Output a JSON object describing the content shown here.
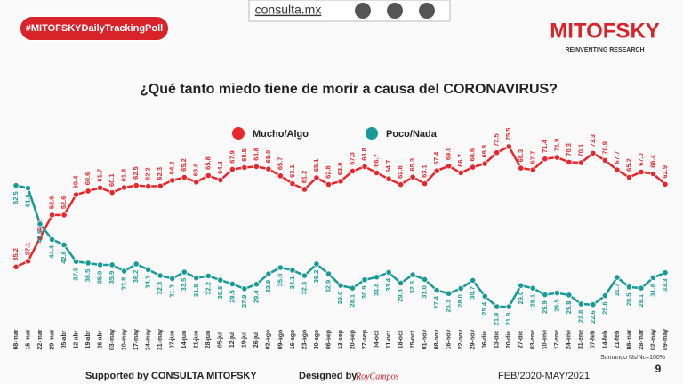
{
  "header": {
    "hashtag": "#MITOFSKYDailyTrackingPoll",
    "site": "consulta.mx",
    "brand": "MITOFSKY",
    "tagline": "REINVENTING RESEARCH"
  },
  "chart_data": {
    "type": "line",
    "title": "¿Qué tanto miedo tiene de morir a causa del CORONAVIRUS?",
    "categories": [
      "08-mar",
      "15-mar",
      "22-mar",
      "29-mar",
      "05-abr",
      "12-abr",
      "19-abr",
      "26-abr",
      "03-may",
      "10-may",
      "17-may",
      "24-may",
      "31-may",
      "07-jun",
      "14-jun",
      "21-jun",
      "28-jun",
      "05-jul",
      "12-jul",
      "19-jul",
      "26-jul",
      "02-ago",
      "09-ago",
      "16-ago",
      "23-ago",
      "30-ago",
      "06-sep",
      "13-sep",
      "20-sep",
      "27-sep",
      "04-oct",
      "11-oct",
      "18-oct",
      "25-oct",
      "01-nov",
      "08-nov",
      "16-nov",
      "22-nov",
      "29-nov",
      "06-dic",
      "13-dic",
      "20-dic",
      "27-dic",
      "03-ene",
      "10-ene",
      "17-ene",
      "24-ene",
      "31-ene",
      "07-feb",
      "14-feb",
      "21-feb",
      "08-mar",
      "28-mar",
      "02-may",
      "09-may"
    ],
    "series": [
      {
        "name": "Mucho/Algo",
        "color": "#e8262b",
        "values": [
          35.2,
          37.1,
          44.9,
          52.6,
          52.6,
          59.4,
          60.6,
          61.7,
          60.1,
          61.8,
          62.5,
          62.2,
          62.3,
          64.2,
          65.2,
          63.6,
          65.8,
          64.3,
          67.9,
          68.5,
          68.8,
          68.0,
          65.7,
          63.1,
          61.2,
          65.1,
          62.8,
          63.9,
          67.3,
          68.8,
          66.7,
          64.7,
          62.8,
          65.3,
          63.1,
          67.4,
          69.0,
          66.7,
          68.6,
          69.8,
          73.5,
          75.5,
          68.3,
          67.7,
          71.4,
          71.9,
          70.3,
          70.1,
          73.3,
          70.9,
          67.7,
          65.2,
          67.0,
          66.4,
          62.9
        ],
        "value_labels": [
          "35.2",
          "37.1",
          "44.9",
          "52.6",
          "52.6",
          "59.4",
          "60.6",
          "61.7",
          "60.1",
          "61.8",
          "62.5",
          "62.2",
          "62.3",
          "64.2",
          "65.2",
          "63.6",
          "65.8",
          "64.3",
          "67.9",
          "68.5",
          "68.8",
          "68.0",
          "65.7",
          "63.1",
          "61.2",
          "65.1",
          "62.8",
          "63.9",
          "67.3",
          "68.8",
          "66.7",
          "64.7",
          "62.8",
          "65.3",
          "63.1",
          "67.4",
          "69.0",
          "66.7",
          "68.6",
          "69.8",
          "73.5",
          "75.5",
          "68.3",
          "67.7",
          "71.4",
          "71.9",
          "70.3",
          "70.1",
          "73.3",
          "70.9",
          "67.7",
          "65.2",
          "67.0",
          "66.4",
          "62.9"
        ]
      },
      {
        "name": "Poco/Nada",
        "color": "#1a9a96",
        "values": [
          62.5,
          61.6,
          49.6,
          44.4,
          42.6,
          37.0,
          36.5,
          35.9,
          35.9,
          33.8,
          36.2,
          34.3,
          32.3,
          31.3,
          33.5,
          31.5,
          32.2,
          30.8,
          29.5,
          27.9,
          29.4,
          32.9,
          35.0,
          34.1,
          32.3,
          36.2,
          32.9,
          29.0,
          28.1,
          30.9,
          31.8,
          33.4,
          29.8,
          32.6,
          31.0,
          27.4,
          26.3,
          28.0,
          30.7,
          25.4,
          21.9,
          21.9,
          29.0,
          28.1,
          25.9,
          26.5,
          25.8,
          22.8,
          22.6,
          25.6,
          31.7,
          28.5,
          28.1,
          31.6,
          33.3
        ],
        "value_labels": [
          "62.5",
          "61.6",
          "49.6",
          "44.4",
          "42.6",
          "37.0",
          "36.5",
          "35.9",
          "35.9",
          "33.8",
          "36.2",
          "34.3",
          "32.3",
          "31.3",
          "33.5",
          "31.5",
          "32.2",
          "30.8",
          "29.5",
          "27.9",
          "29.4",
          "32.9",
          "35.0",
          "34.1",
          "32.3",
          "36.2",
          "32.9",
          "29.0",
          "28.1",
          "30.9",
          "31.8",
          "33.4",
          "29.8",
          "32.6",
          "31.0",
          "27.4",
          "26.3",
          "28.0",
          "30.7",
          "25.4",
          "21.9",
          "21.9",
          "29.0",
          "28.1",
          "25.9",
          "26.5",
          "25.8",
          "22.8",
          "22.6",
          "25.6",
          "31.7",
          "28.5",
          "28.1",
          "31.6",
          "33.3"
        ]
      }
    ],
    "note": "Sumando Ns/Nc=100%",
    "page_number": "9"
  },
  "footer": {
    "supported": "Supported by  CONSULTA  MITOFSKY",
    "designed": "Designed by",
    "designer": "RoyCampos",
    "period": "FEB/2020-MAY/2021"
  }
}
